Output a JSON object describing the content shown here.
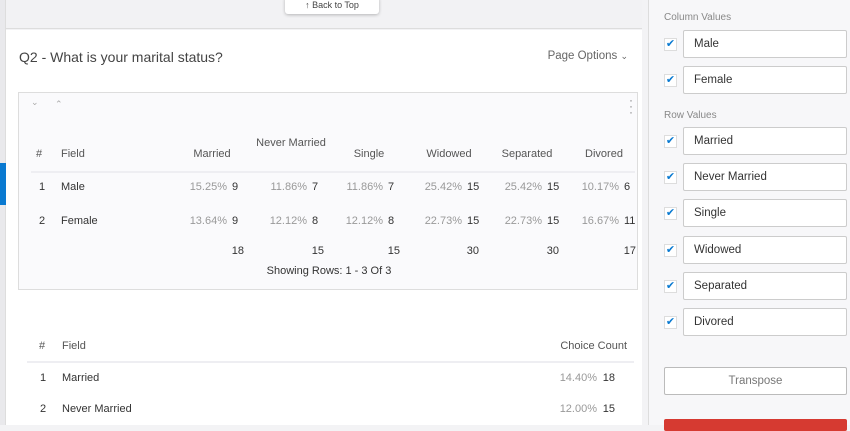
{
  "back_to_top": "↑ Back to Top",
  "question_title": "Q2 - What is your marital status?",
  "page_options": "Page Options",
  "crosstab": {
    "headers": {
      "num": "#",
      "field": "Field",
      "cols": [
        "Married",
        "Never Married",
        "Single",
        "Widowed",
        "Separated",
        "Divored"
      ]
    },
    "rows": [
      {
        "num": "1",
        "field": "Male",
        "cells": [
          [
            "15.25%",
            "9"
          ],
          [
            "11.86%",
            "7"
          ],
          [
            "11.86%",
            "7"
          ],
          [
            "25.42%",
            "15"
          ],
          [
            "25.42%",
            "15"
          ],
          [
            "10.17%",
            "6"
          ]
        ]
      },
      {
        "num": "2",
        "field": "Female",
        "cells": [
          [
            "13.64%",
            "9"
          ],
          [
            "12.12%",
            "8"
          ],
          [
            "12.12%",
            "8"
          ],
          [
            "22.73%",
            "15"
          ],
          [
            "22.73%",
            "15"
          ],
          [
            "16.67%",
            "11"
          ]
        ]
      }
    ],
    "totals": [
      "18",
      "15",
      "15",
      "30",
      "30",
      "17"
    ],
    "showing": "Showing Rows: 1 - 3 Of 3"
  },
  "choice_table": {
    "headers": {
      "num": "#",
      "field": "Field",
      "count": "Choice Count"
    },
    "rows": [
      {
        "num": "1",
        "field": "Married",
        "pct": "14.40%",
        "count": "18"
      },
      {
        "num": "2",
        "field": "Never Married",
        "pct": "12.00%",
        "count": "15"
      }
    ]
  },
  "panel": {
    "column_values_label": "Column Values",
    "column_values": [
      "Male",
      "Female"
    ],
    "row_values_label": "Row Values",
    "row_values": [
      "Married",
      "Never Married",
      "Single",
      "Widowed",
      "Separated",
      "Divored"
    ],
    "transpose": "Transpose"
  },
  "colors": {
    "accent": "#0a7ad1",
    "danger": "#d63a31"
  }
}
